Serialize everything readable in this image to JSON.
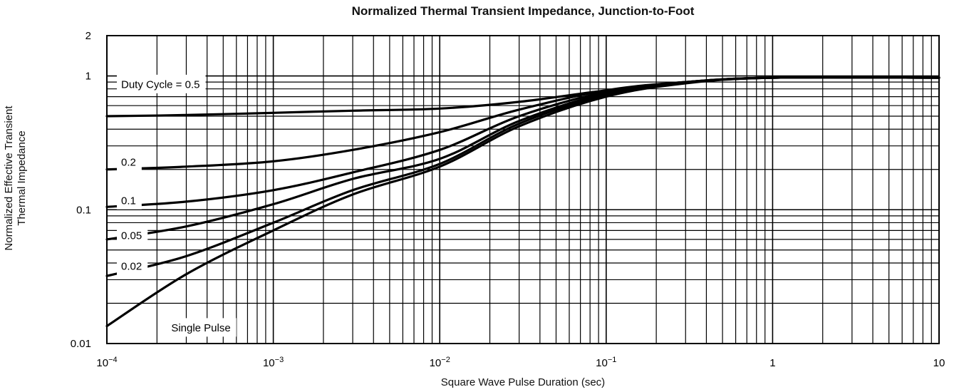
{
  "chart_data": {
    "type": "line",
    "title": "Normalized Thermal Transient Impedance, Junction-to-Foot",
    "xlabel": "Square Wave Pulse Duration (sec)",
    "ylabel_lines": [
      "Normalized Effective Transient",
      "Thermal Impedance"
    ],
    "x_scale": "log",
    "y_scale": "log",
    "xlim": [
      0.0001,
      10
    ],
    "ylim": [
      0.01,
      2
    ],
    "grid": true,
    "x_ticks": [
      {
        "value": 0.0001,
        "base": "10",
        "exp": "−4"
      },
      {
        "value": 0.001,
        "base": "10",
        "exp": "−3"
      },
      {
        "value": 0.01,
        "base": "10",
        "exp": "−2"
      },
      {
        "value": 0.1,
        "base": "10",
        "exp": "−1"
      },
      {
        "value": 1,
        "label": "1"
      },
      {
        "value": 10,
        "label": "10"
      }
    ],
    "y_ticks": [
      {
        "value": 0.01,
        "label": "0.01"
      },
      {
        "value": 0.1,
        "label": "0.1"
      },
      {
        "value": 1,
        "label": "1"
      },
      {
        "value": 2,
        "label": "2"
      }
    ],
    "series": [
      {
        "name": "Duty Cycle = 0.5",
        "label_x": 0.0001,
        "label_y": 0.87,
        "x": [
          0.0001,
          0.0003,
          0.001,
          0.003,
          0.01,
          0.03,
          0.1,
          0.3,
          1,
          10
        ],
        "y": [
          0.5,
          0.51,
          0.53,
          0.55,
          0.57,
          0.64,
          0.78,
          0.9,
          0.97,
          0.97
        ]
      },
      {
        "name": "0.2",
        "label_x": 0.0001,
        "label_y": 0.228,
        "x": [
          0.0001,
          0.0003,
          0.001,
          0.003,
          0.01,
          0.03,
          0.1,
          0.3,
          1,
          10
        ],
        "y": [
          0.2,
          0.21,
          0.23,
          0.28,
          0.38,
          0.56,
          0.78,
          0.9,
          0.97,
          0.97
        ]
      },
      {
        "name": "0.1",
        "label_x": 0.0001,
        "label_y": 0.118,
        "x": [
          0.0001,
          0.0003,
          0.001,
          0.003,
          0.01,
          0.03,
          0.1,
          0.3,
          1,
          10
        ],
        "y": [
          0.105,
          0.115,
          0.14,
          0.19,
          0.28,
          0.5,
          0.76,
          0.9,
          0.97,
          0.97
        ]
      },
      {
        "name": "0.05",
        "label_x": 0.0001,
        "label_y": 0.0645,
        "x": [
          0.0001,
          0.0003,
          0.001,
          0.003,
          0.01,
          0.03,
          0.1,
          0.3,
          1,
          10
        ],
        "y": [
          0.06,
          0.075,
          0.11,
          0.17,
          0.24,
          0.46,
          0.74,
          0.89,
          0.97,
          0.97
        ]
      },
      {
        "name": "0.02",
        "label_x": 0.0001,
        "label_y": 0.038,
        "x": [
          0.0001,
          0.0003,
          0.001,
          0.003,
          0.01,
          0.03,
          0.1,
          0.3,
          1,
          10
        ],
        "y": [
          0.032,
          0.045,
          0.08,
          0.14,
          0.22,
          0.44,
          0.72,
          0.89,
          0.97,
          0.97
        ]
      },
      {
        "name": "Single Pulse",
        "label_x": 0.0002,
        "label_y": 0.0132,
        "x": [
          0.0001,
          0.0003,
          0.001,
          0.003,
          0.01,
          0.03,
          0.1,
          0.3,
          1,
          10
        ],
        "y": [
          0.0135,
          0.033,
          0.07,
          0.13,
          0.21,
          0.42,
          0.7,
          0.88,
          0.97,
          0.97
        ]
      }
    ]
  }
}
